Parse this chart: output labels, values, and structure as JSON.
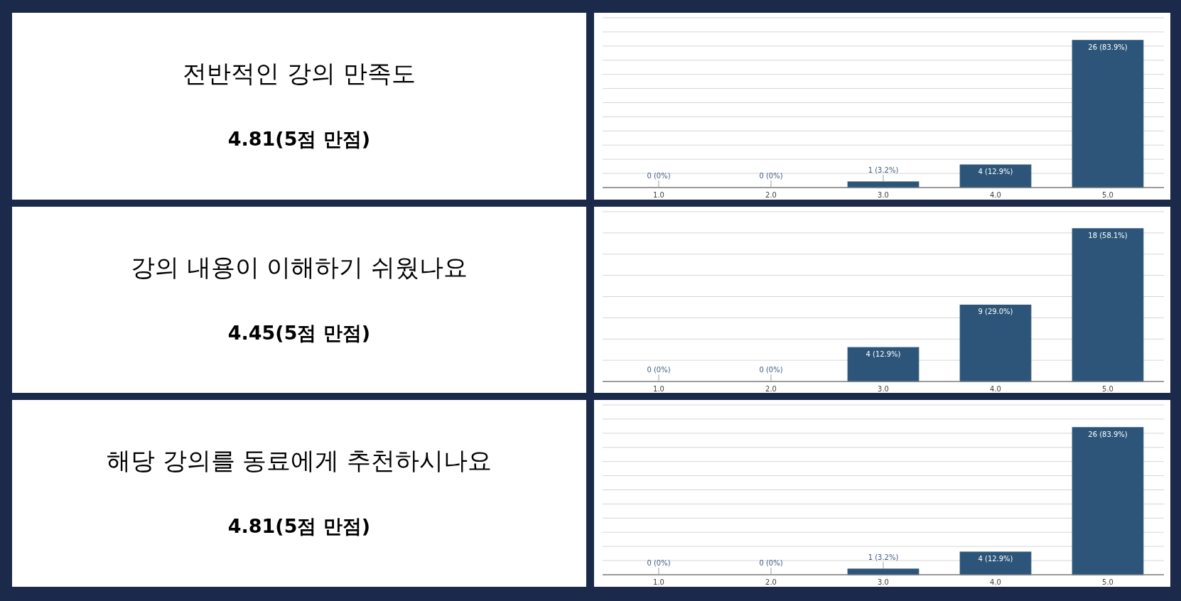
{
  "chart_data": [
    {
      "type": "other",
      "title": "전반적인 강의 만족도",
      "subtitle": "4.81(5점 만점)"
    },
    {
      "type": "bar",
      "categories": [
        "1.0",
        "2.0",
        "3.0",
        "4.0",
        "5.0"
      ],
      "values": [
        0,
        0,
        1,
        4,
        26
      ],
      "value_labels": [
        "0 (0%)",
        "0 (0%)",
        "1 (3.2%)",
        "4 (12.9%)",
        "26 (83.9%)"
      ],
      "color": "#2c5579",
      "ylim": [
        0,
        30
      ],
      "yticks": [
        {
          "value": 0,
          "label": null
        },
        {
          "value": 2.5,
          "label": null
        },
        {
          "value": 5,
          "label": null
        },
        {
          "value": 7.5,
          "label": null
        },
        {
          "value": 10,
          "label": null
        },
        {
          "value": 12.5,
          "label": null
        },
        {
          "value": 15,
          "label": null
        },
        {
          "value": 17.5,
          "label": null
        },
        {
          "value": 20,
          "label": null
        },
        {
          "value": 22.5,
          "label": null
        },
        {
          "value": 25,
          "label": null
        },
        {
          "value": 27.5,
          "label": null
        },
        {
          "value": 30,
          "label": null
        }
      ],
      "grid": "y",
      "tick_labels": "x"
    },
    {
      "type": "other",
      "title": "강의 내용이 이해하기 쉬웠나요",
      "subtitle": "4.45(5점 만점)"
    },
    {
      "type": "bar",
      "categories": [
        "1.0",
        "2.0",
        "3.0",
        "4.0",
        "5.0"
      ],
      "values": [
        0,
        0,
        4,
        9,
        18
      ],
      "value_labels": [
        "0 (0%)",
        "0 (0%)",
        "4 (12.9%)",
        "9 (29.0%)",
        "18 (58.1%)"
      ],
      "color": "#2c5579",
      "ylim": [
        0,
        20
      ],
      "yticks": [
        {
          "value": 0,
          "label": null
        },
        {
          "value": 2.5,
          "label": null
        },
        {
          "value": 5,
          "label": null
        },
        {
          "value": 7.5,
          "label": null
        },
        {
          "value": 10,
          "label": null
        },
        {
          "value": 12.5,
          "label": null
        },
        {
          "value": 15,
          "label": null
        },
        {
          "value": 17.5,
          "label": null
        },
        {
          "value": 20,
          "label": null
        }
      ],
      "grid": "y",
      "tick_labels": "x"
    },
    {
      "type": "other",
      "title": "해당 강의를 동료에게 추천하시나요",
      "subtitle": "4.81(5점 만점)"
    },
    {
      "type": "bar",
      "categories": [
        "1.0",
        "2.0",
        "3.0",
        "4.0",
        "5.0"
      ],
      "values": [
        0,
        0,
        1,
        4,
        26
      ],
      "value_labels": [
        "0 (0%)",
        "0 (0%)",
        "1 (3.2%)",
        "4 (12.9%)",
        "26 (83.9%)"
      ],
      "color": "#2c5579",
      "ylim": [
        0,
        30
      ],
      "yticks": [
        {
          "value": 0,
          "label": null
        },
        {
          "value": 2.5,
          "label": null
        },
        {
          "value": 5,
          "label": null
        },
        {
          "value": 7.5,
          "label": null
        },
        {
          "value": 10,
          "label": null
        },
        {
          "value": 12.5,
          "label": null
        },
        {
          "value": 15,
          "label": null
        },
        {
          "value": 17.5,
          "label": null
        },
        {
          "value": 20,
          "label": null
        },
        {
          "value": 22.5,
          "label": null
        },
        {
          "value": 25,
          "label": null
        },
        {
          "value": 27.5,
          "label": null
        },
        {
          "value": 30,
          "label": null
        }
      ],
      "grid": "y",
      "tick_labels": "x"
    }
  ]
}
